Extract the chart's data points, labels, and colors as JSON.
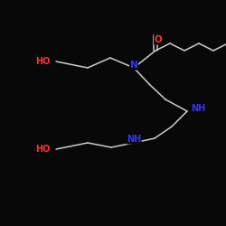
{
  "background_color": "#080808",
  "bond_color": "#cccccc",
  "atom_colors": {
    "O": "#ff3333",
    "N": "#3333ff",
    "C": "#cccccc"
  },
  "figsize": [
    2.5,
    2.5
  ],
  "dpi": 100,
  "xlim": [
    0,
    250
  ],
  "ylim": [
    0,
    250
  ]
}
